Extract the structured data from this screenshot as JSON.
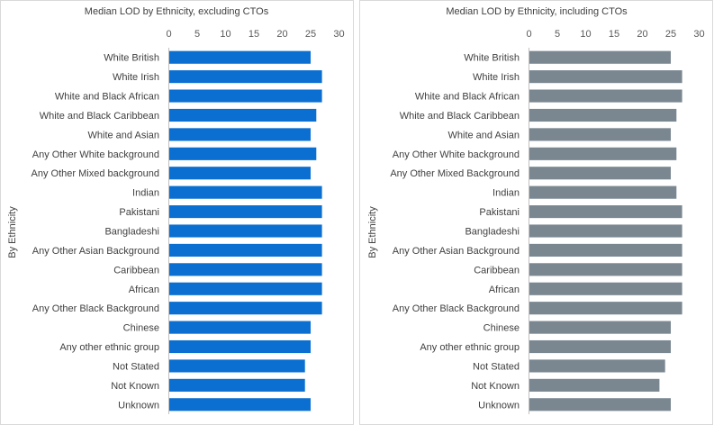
{
  "chart_data": [
    {
      "type": "bar",
      "orientation": "horizontal",
      "title": "Median LOD by Ethnicity, excluding CTOs",
      "ylabel": "By Ethnicity",
      "xlabel": "",
      "xlim": [
        0,
        30
      ],
      "xticks": [
        0,
        5,
        10,
        15,
        20,
        25,
        30
      ],
      "axis_position": "top",
      "grid": false,
      "color": "#0a6fd1",
      "categories": [
        "White British",
        "White Irish",
        "White and Black African",
        "White and Black Caribbean",
        "White and Asian",
        "Any Other White background",
        "Any Other Mixed background",
        "Indian",
        "Pakistani",
        "Bangladeshi",
        "Any Other Asian Background",
        "Caribbean",
        "African",
        "Any Other Black Background",
        "Chinese",
        "Any other ethnic group",
        "Not Stated",
        "Not Known",
        "Unknown"
      ],
      "values": [
        25,
        27,
        27,
        26,
        25,
        26,
        25,
        27,
        27,
        27,
        27,
        27,
        27,
        27,
        25,
        25,
        24,
        24,
        25
      ]
    },
    {
      "type": "bar",
      "orientation": "horizontal",
      "title": "Median LOD by Ethnicity, including CTOs",
      "ylabel": "By Ethnicity",
      "xlabel": "",
      "xlim": [
        0,
        30
      ],
      "xticks": [
        0,
        5,
        10,
        15,
        20,
        25,
        30
      ],
      "axis_position": "top",
      "grid": false,
      "color": "#7a8791",
      "categories": [
        "White British",
        "White Irish",
        "White and Black African",
        "White and Black Caribbean",
        "White and Asian",
        "Any Other White background",
        "Any Other Mixed Background",
        "Indian",
        "Pakistani",
        "Bangladeshi",
        "Any Other Asian Background",
        "Caribbean",
        "African",
        "Any Other Black Background",
        "Chinese",
        "Any other ethnic group",
        "Not Stated",
        "Not Known",
        "Unknown"
      ],
      "values": [
        25,
        27,
        27,
        26,
        25,
        26,
        25,
        26,
        27,
        27,
        27,
        27,
        27,
        27,
        25,
        25,
        24,
        23,
        25
      ]
    }
  ]
}
